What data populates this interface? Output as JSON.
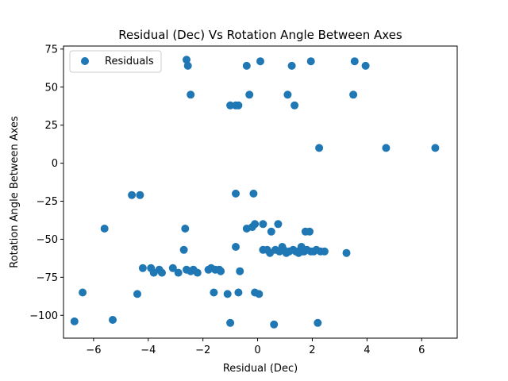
{
  "chart_data": {
    "type": "scatter",
    "title": "Residual (Dec) Vs Rotation Angle Between Axes",
    "xlabel": "Residual (Dec)",
    "ylabel": "Rotation Angle Between Axes",
    "xlim": [
      -7.1,
      7.3
    ],
    "ylim": [
      -115,
      77
    ],
    "xticks": [
      -6,
      -4,
      -2,
      0,
      2,
      4,
      6
    ],
    "yticks": [
      -100,
      -75,
      -50,
      -25,
      0,
      25,
      50,
      75
    ],
    "grid": false,
    "legend": {
      "position": "top-left",
      "entries": [
        "Residuals"
      ]
    },
    "series": [
      {
        "name": "Residuals",
        "color": "#1f77b4",
        "points": [
          [
            -6.7,
            -104
          ],
          [
            -6.4,
            -85
          ],
          [
            -5.6,
            -43
          ],
          [
            -5.3,
            -103
          ],
          [
            -4.6,
            -21
          ],
          [
            -4.4,
            -86
          ],
          [
            -4.3,
            -21
          ],
          [
            -4.2,
            -69
          ],
          [
            -3.9,
            -69
          ],
          [
            -3.8,
            -72
          ],
          [
            -3.6,
            -70
          ],
          [
            -3.5,
            -72
          ],
          [
            -3.1,
            -69
          ],
          [
            -2.9,
            -72
          ],
          [
            -2.7,
            -57
          ],
          [
            -2.65,
            -43
          ],
          [
            -2.6,
            -70
          ],
          [
            -2.6,
            68
          ],
          [
            -2.55,
            64
          ],
          [
            -2.45,
            45
          ],
          [
            -2.45,
            -71
          ],
          [
            -2.35,
            -70
          ],
          [
            -2.2,
            -72
          ],
          [
            -1.8,
            -70
          ],
          [
            -1.7,
            -69
          ],
          [
            -1.6,
            -85
          ],
          [
            -1.55,
            -70
          ],
          [
            -1.4,
            -70
          ],
          [
            -1.35,
            -71
          ],
          [
            -1.1,
            -86
          ],
          [
            -1.0,
            38
          ],
          [
            -1.0,
            -105
          ],
          [
            -0.8,
            38
          ],
          [
            -0.8,
            -20
          ],
          [
            -0.8,
            -55
          ],
          [
            -0.7,
            38
          ],
          [
            -0.7,
            -85
          ],
          [
            -0.65,
            -71
          ],
          [
            -0.4,
            64
          ],
          [
            -0.4,
            -43
          ],
          [
            -0.3,
            45
          ],
          [
            -0.2,
            -42
          ],
          [
            -0.15,
            -20
          ],
          [
            -0.1,
            -40
          ],
          [
            -0.1,
            -85
          ],
          [
            0.05,
            -86
          ],
          [
            0.1,
            67
          ],
          [
            0.2,
            -57
          ],
          [
            0.2,
            -40
          ],
          [
            0.35,
            -57
          ],
          [
            0.45,
            -59
          ],
          [
            0.5,
            -45
          ],
          [
            0.6,
            -106
          ],
          [
            0.65,
            -57
          ],
          [
            0.75,
            -40
          ],
          [
            0.8,
            -58
          ],
          [
            0.9,
            -55
          ],
          [
            0.95,
            -57
          ],
          [
            1.05,
            -59
          ],
          [
            1.1,
            45
          ],
          [
            1.15,
            -58
          ],
          [
            1.25,
            64
          ],
          [
            1.3,
            -57
          ],
          [
            1.35,
            38
          ],
          [
            1.4,
            -58
          ],
          [
            1.5,
            -59
          ],
          [
            1.6,
            -55
          ],
          [
            1.65,
            -58
          ],
          [
            1.7,
            -58
          ],
          [
            1.75,
            -45
          ],
          [
            1.8,
            -57
          ],
          [
            1.9,
            -45
          ],
          [
            1.95,
            67
          ],
          [
            1.95,
            -58
          ],
          [
            2.05,
            -58
          ],
          [
            2.15,
            -57
          ],
          [
            2.2,
            -105
          ],
          [
            2.25,
            10
          ],
          [
            2.3,
            -58
          ],
          [
            2.45,
            -58
          ],
          [
            3.25,
            -59
          ],
          [
            3.5,
            45
          ],
          [
            3.55,
            67
          ],
          [
            3.95,
            64
          ],
          [
            4.7,
            10
          ],
          [
            6.5,
            10
          ]
        ]
      }
    ]
  }
}
